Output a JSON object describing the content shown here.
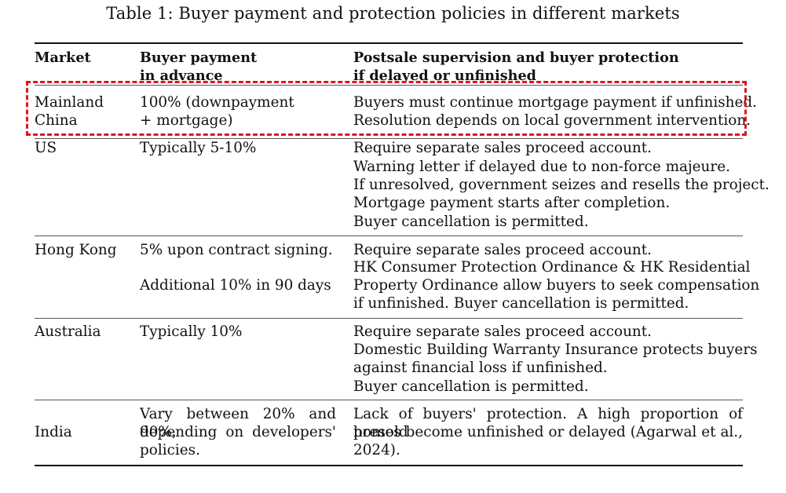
{
  "caption": "Table 1: Buyer payment and protection policies in different markets",
  "headers": {
    "market": "Market",
    "buyer_payment_l1": "Buyer payment",
    "buyer_payment_l2": "in advance",
    "postsale_l1": "Postsale supervision and buyer protection",
    "postsale_l2": "if delayed or unfinished"
  },
  "rows": [
    {
      "market": [
        "Mainland",
        "China"
      ],
      "payment": [
        "100% (downpayment",
        "+ mortgage)"
      ],
      "protection": [
        "Buyers must continue mortgage payment if unfinished.",
        "Resolution depends on local government intervention."
      ]
    },
    {
      "market": [
        "US"
      ],
      "payment": [
        "Typically 5-10%"
      ],
      "protection": [
        "Require separate sales proceed account.",
        "Warning letter if delayed due to non-force majeure.",
        "If unresolved, government seizes and resells the project.",
        "Mortgage payment starts after completion.",
        "Buyer cancellation is permitted."
      ]
    },
    {
      "market": [
        "Hong Kong"
      ],
      "payment": [
        "5% upon contract signing.",
        "Additional 10% in 90 days"
      ],
      "protection": [
        "Require separate sales proceed account.",
        "HK Consumer Protection Ordinance & HK Residential",
        "Property Ordinance allow buyers to seek compensation",
        "if unfinished. Buyer cancellation is permitted."
      ]
    },
    {
      "market": [
        "Australia"
      ],
      "payment": [
        "Typically 10%"
      ],
      "protection": [
        "Require separate sales proceed account.",
        "Domestic Building Warranty Insurance protects buyers",
        "against financial loss if unfinished.",
        "Buyer cancellation is permitted."
      ]
    },
    {
      "market": [
        "India"
      ],
      "payment": [
        "Vary between 20% and 90%,",
        "depending on developers'",
        "policies."
      ],
      "protection": [
        "Lack of buyers' protection. A high proportion of presold",
        "homes become unfinished or delayed (Agarwal et al.,",
        "2024)."
      ]
    }
  ],
  "highlight_color": "#e0141e"
}
